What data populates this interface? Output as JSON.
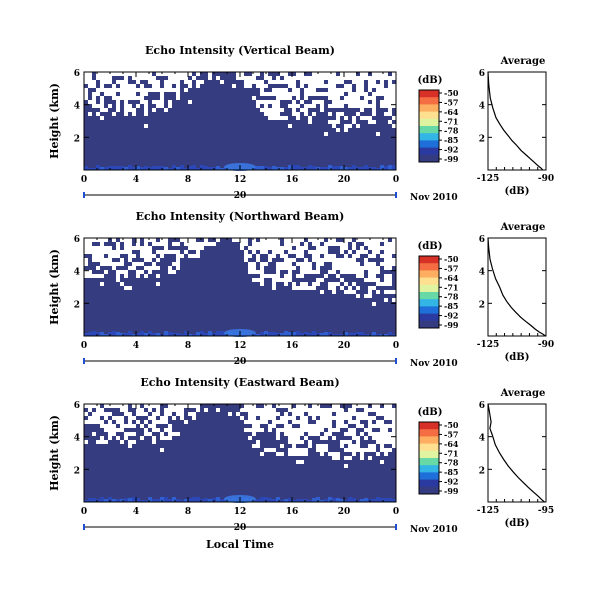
{
  "figure": {
    "xlabel_bottom": "Local Time",
    "date_label": "Nov 2010",
    "colorbar_units": "(dB)",
    "colorbar_ticks": [
      "-50",
      "-57",
      "-64",
      "-71",
      "-78",
      "-85",
      "-92",
      "-99"
    ],
    "colorbar_colors": [
      "#d73027",
      "#f46d43",
      "#fdae61",
      "#fee090",
      "#e0f3a0",
      "#66d9a6",
      "#33b5e5",
      "#1e6fd9",
      "#2a3aa0",
      "#343b80"
    ],
    "white_color": "#ffffff",
    "dark_color": "#363c80"
  },
  "chart_data": [
    {
      "type": "heatmap",
      "title": "Echo Intensity (Vertical Beam)",
      "ylabel": "Height (km)",
      "xlim": [
        0,
        24
      ],
      "ylim": [
        0,
        6
      ],
      "xticks": [
        "0",
        "4",
        "8",
        "12",
        "16",
        "20",
        "0"
      ],
      "yticks": [
        "2",
        "4",
        "6"
      ],
      "date_tick": "20",
      "zlim": [
        -99,
        -50
      ],
      "boundary_km": [
        3.4,
        3.4,
        3.3,
        3.2,
        3.2,
        3.3,
        3.5,
        3.9,
        4.6,
        5.2,
        5.8,
        6.0,
        5.4,
        4.1,
        3.2,
        2.9,
        2.8,
        2.8,
        2.7,
        2.7,
        2.6,
        2.6,
        2.7,
        2.7,
        2.7
      ]
    },
    {
      "type": "line",
      "title": "Average",
      "xlabel": "(dB)",
      "xticks": [
        "-125",
        "-90"
      ],
      "yticks": [
        "2",
        "4",
        "6"
      ],
      "xlim": [
        -125,
        -90
      ],
      "ylim": [
        0,
        6
      ],
      "x": [
        -125.0,
        -124.5,
        -123.6,
        -122.1,
        -120.2,
        -117.8,
        -115.6,
        -112.8,
        -110.5,
        -107.6,
        -105.1,
        -102.3,
        -99.6,
        -96.8,
        -94.7,
        -92.8,
        -92.0
      ],
      "y": [
        6.0,
        5.2,
        4.4,
        3.8,
        3.2,
        2.8,
        2.45,
        2.1,
        1.8,
        1.5,
        1.2,
        0.95,
        0.7,
        0.45,
        0.25,
        0.1,
        0.0
      ]
    },
    {
      "type": "heatmap",
      "title": "Echo Intensity (Northward Beam)",
      "ylabel": "Height (km)",
      "xlim": [
        0,
        24
      ],
      "ylim": [
        0,
        6
      ],
      "xticks": [
        "0",
        "4",
        "8",
        "12",
        "16",
        "20",
        "0"
      ],
      "yticks": [
        "2",
        "4",
        "6"
      ],
      "date_tick": "20",
      "zlim": [
        -99,
        -50
      ],
      "boundary_km": [
        3.4,
        3.5,
        3.5,
        3.5,
        3.4,
        3.5,
        3.6,
        3.9,
        4.4,
        5.0,
        5.8,
        6.0,
        5.6,
        3.3,
        3.1,
        3.0,
        2.9,
        2.8,
        2.8,
        2.7,
        2.6,
        2.4,
        2.3,
        2.2,
        2.2
      ]
    },
    {
      "type": "line",
      "title": "Average",
      "xlabel": "(dB)",
      "xticks": [
        "-125",
        "-90"
      ],
      "yticks": [
        "2",
        "4",
        "6"
      ],
      "xlim": [
        -125,
        -90
      ],
      "ylim": [
        0,
        6
      ],
      "x": [
        -125.0,
        -124.6,
        -123.8,
        -122.3,
        -120.4,
        -118.0,
        -116.0,
        -113.6,
        -111.0,
        -108.2,
        -105.3,
        -102.3,
        -99.2,
        -96.5,
        -94.2,
        -91.6,
        -90.3
      ],
      "y": [
        6.0,
        5.4,
        4.7,
        4.1,
        3.5,
        3.0,
        2.5,
        2.1,
        1.75,
        1.45,
        1.15,
        0.9,
        0.65,
        0.42,
        0.25,
        0.1,
        0.0
      ]
    },
    {
      "type": "heatmap",
      "title": "Echo Intensity (Eastward Beam)",
      "ylabel": "Height (km)",
      "xlim": [
        0,
        24
      ],
      "ylim": [
        0,
        6
      ],
      "xticks": [
        "0",
        "4",
        "8",
        "12",
        "16",
        "20",
        "0"
      ],
      "yticks": [
        "2",
        "4",
        "6"
      ],
      "date_tick": "20",
      "zlim": [
        -99,
        -50
      ],
      "boundary_km": [
        3.6,
        3.6,
        3.5,
        3.4,
        3.4,
        3.5,
        3.7,
        4.0,
        4.5,
        5.1,
        5.7,
        6.0,
        5.2,
        3.4,
        3.1,
        2.9,
        2.8,
        2.8,
        2.7,
        2.6,
        2.6,
        2.6,
        2.6,
        2.6,
        2.6
      ]
    },
    {
      "type": "line",
      "title": "Average",
      "xlabel": "(dB)",
      "xticks": [
        "-125",
        "-95"
      ],
      "yticks": [
        "2",
        "4",
        "6"
      ],
      "xlim": [
        -125,
        -95
      ],
      "ylim": [
        0,
        6
      ],
      "x": [
        -125.0,
        -124.2,
        -123.4,
        -124.0,
        -122.8,
        -121.2,
        -119.0,
        -116.9,
        -114.5,
        -112.0,
        -109.4,
        -106.8,
        -104.2,
        -101.4,
        -99.0,
        -97.3,
        -95.8
      ],
      "y": [
        6.0,
        5.5,
        4.9,
        4.5,
        4.1,
        3.5,
        3.0,
        2.6,
        2.2,
        1.85,
        1.5,
        1.2,
        0.9,
        0.6,
        0.35,
        0.15,
        0.0
      ]
    }
  ]
}
